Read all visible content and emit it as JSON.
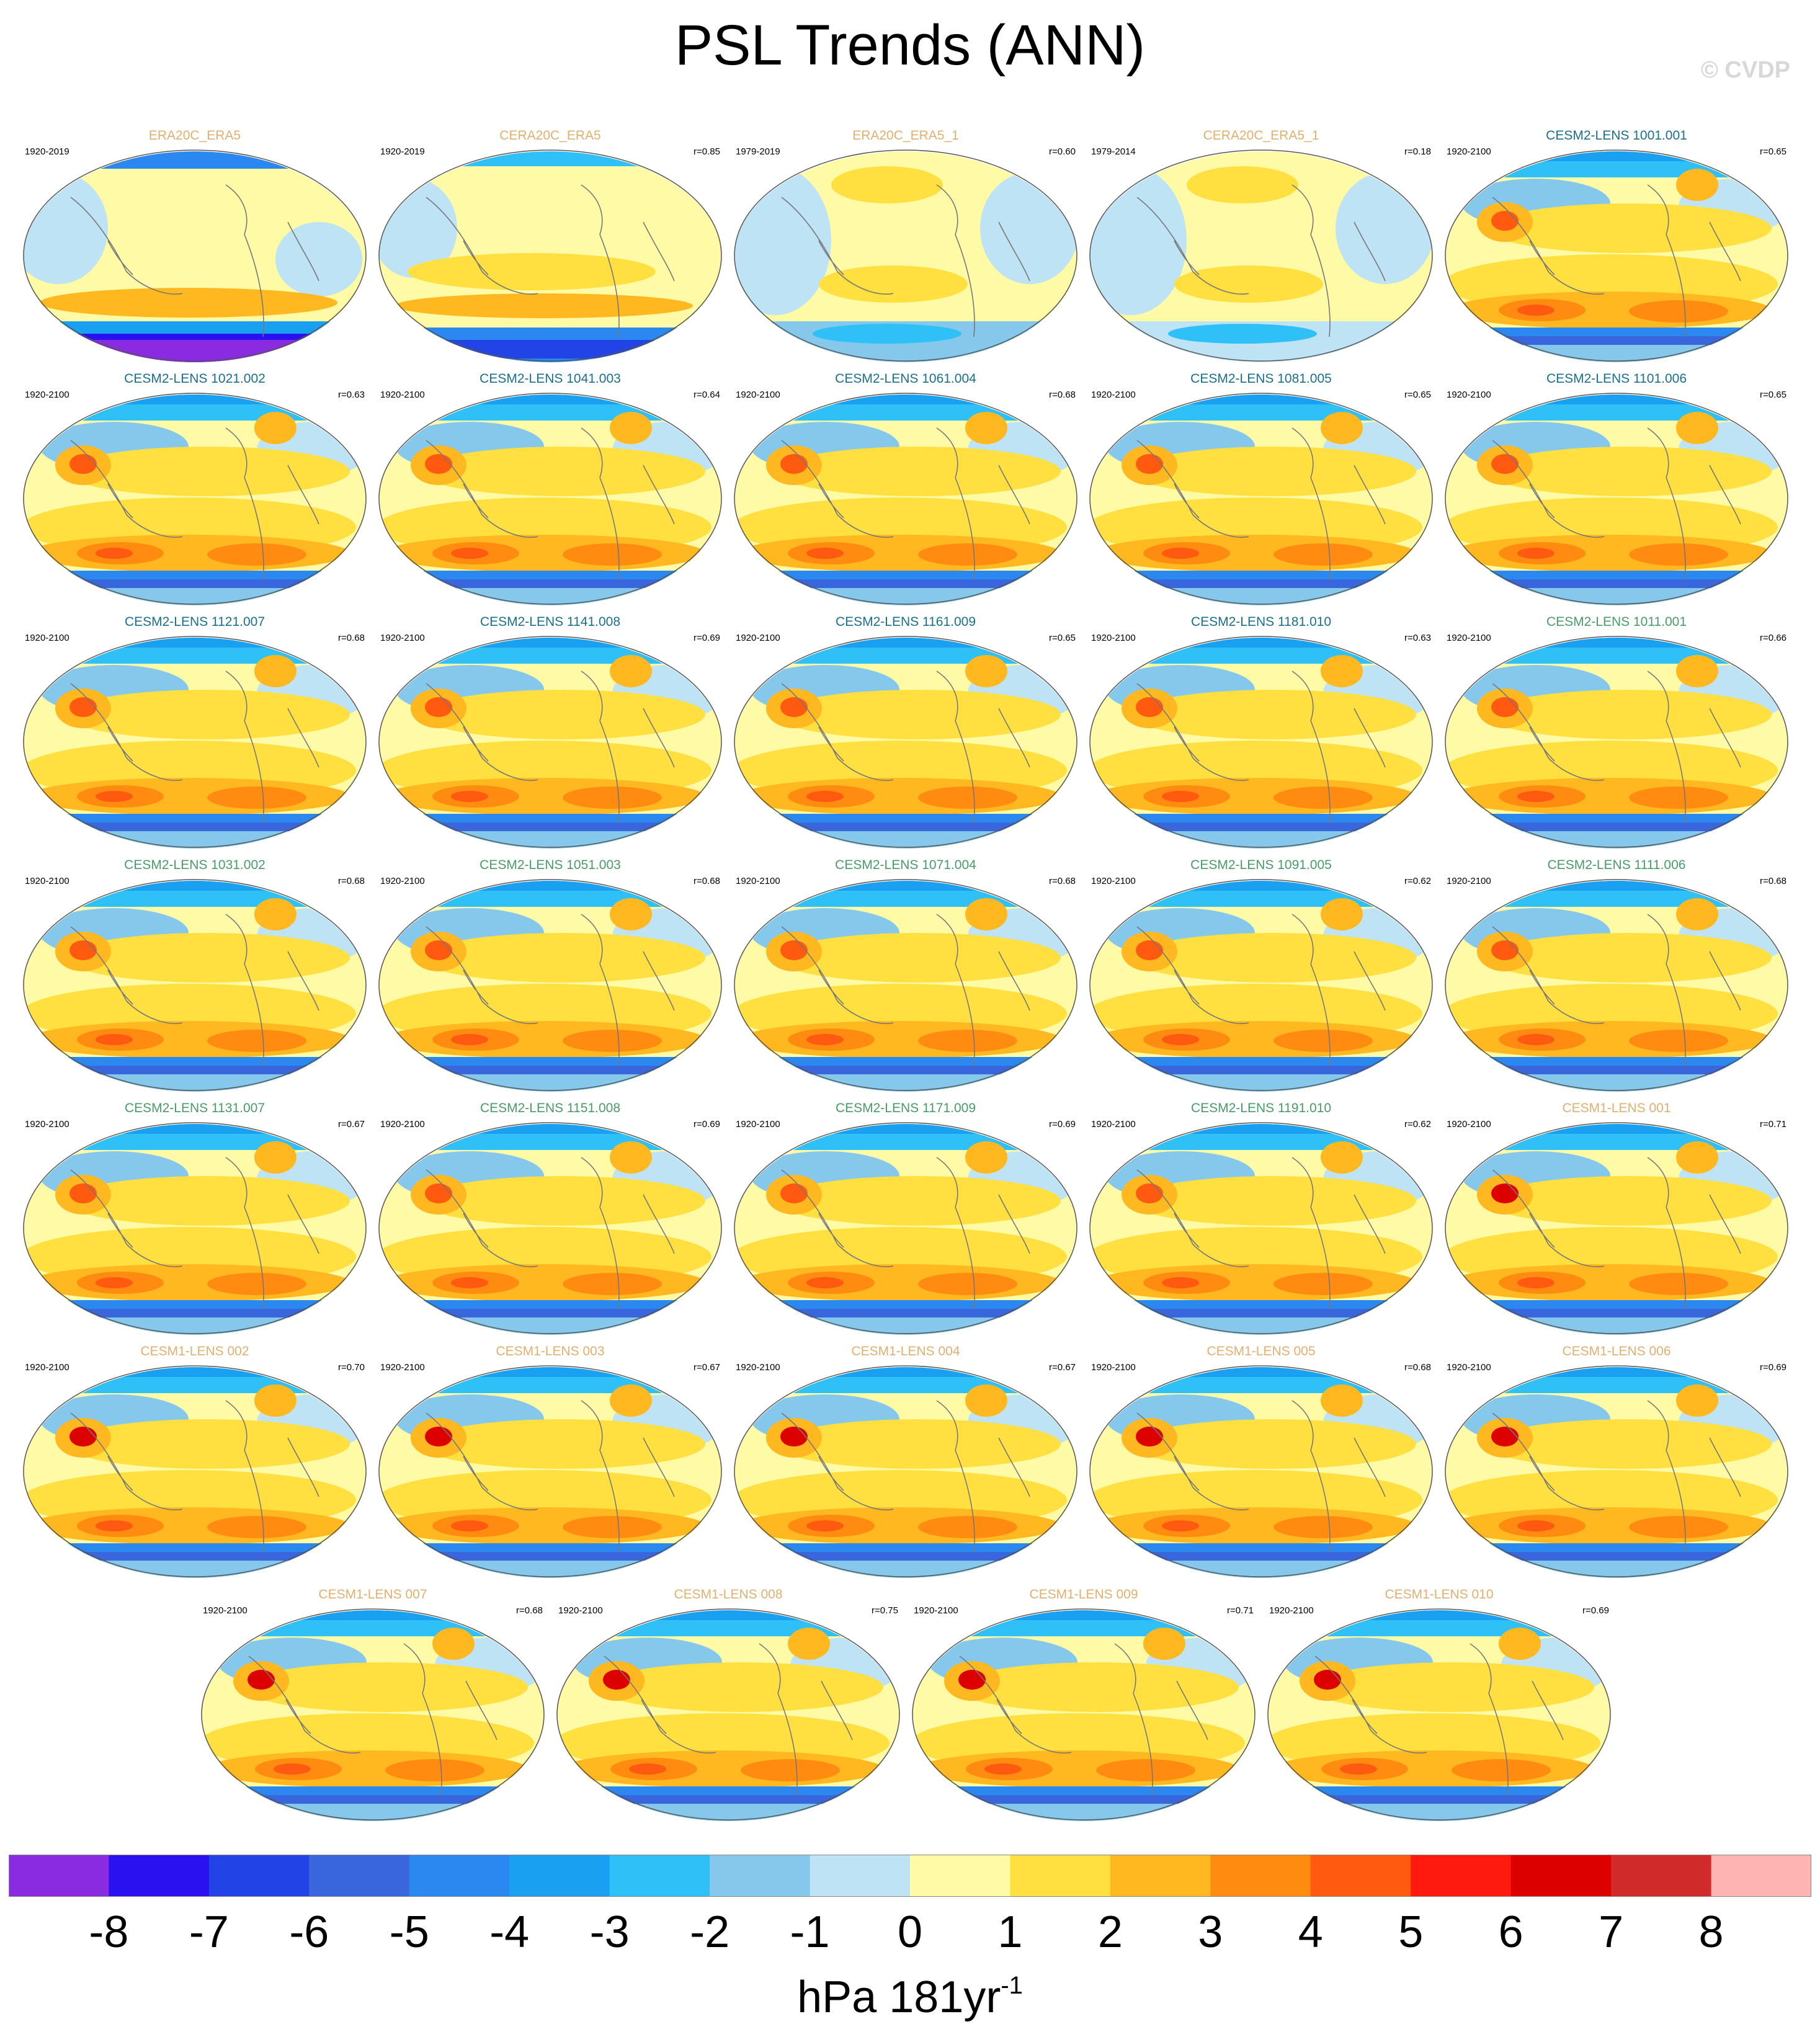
{
  "title": "PSL Trends (ANN)",
  "copyright": "© CVDP",
  "panels": [
    {
      "title": "ERA20C_ERA5",
      "period": "1920-2019",
      "corr": "",
      "kind": "obs1"
    },
    {
      "title": "CERA20C_ERA5",
      "period": "1920-2019",
      "corr": "r=0.85",
      "kind": "obs2"
    },
    {
      "title": "ERA20C_ERA5_1",
      "period": "1979-2019",
      "corr": "r=0.60",
      "kind": "obs3"
    },
    {
      "title": "CERA20C_ERA5_1",
      "period": "1979-2014",
      "corr": "r=0.18",
      "kind": "obs4"
    },
    {
      "title": "CESM2-LENS 1001.001",
      "period": "1920-2100",
      "corr": "r=0.65",
      "kind": "cesm2"
    },
    {
      "title": "CESM2-LENS 1021.002",
      "period": "1920-2100",
      "corr": "r=0.63",
      "kind": "cesm2"
    },
    {
      "title": "CESM2-LENS 1041.003",
      "period": "1920-2100",
      "corr": "r=0.64",
      "kind": "cesm2"
    },
    {
      "title": "CESM2-LENS 1061.004",
      "period": "1920-2100",
      "corr": "r=0.68",
      "kind": "cesm2"
    },
    {
      "title": "CESM2-LENS 1081.005",
      "period": "1920-2100",
      "corr": "r=0.65",
      "kind": "cesm2"
    },
    {
      "title": "CESM2-LENS 1101.006",
      "period": "1920-2100",
      "corr": "r=0.65",
      "kind": "cesm2"
    },
    {
      "title": "CESM2-LENS 1121.007",
      "period": "1920-2100",
      "corr": "r=0.68",
      "kind": "cesm2"
    },
    {
      "title": "CESM2-LENS 1141.008",
      "period": "1920-2100",
      "corr": "r=0.69",
      "kind": "cesm2"
    },
    {
      "title": "CESM2-LENS 1161.009",
      "period": "1920-2100",
      "corr": "r=0.65",
      "kind": "cesm2"
    },
    {
      "title": "CESM2-LENS 1181.010",
      "period": "1920-2100",
      "corr": "r=0.63",
      "kind": "cesm2"
    },
    {
      "title": "CESM2-LENS 1011.001",
      "period": "1920-2100",
      "corr": "r=0.66",
      "kind": "cesm2"
    },
    {
      "title": "CESM2-LENS 1031.002",
      "period": "1920-2100",
      "corr": "r=0.68",
      "kind": "cesm2"
    },
    {
      "title": "CESM2-LENS 1051.003",
      "period": "1920-2100",
      "corr": "r=0.68",
      "kind": "cesm2"
    },
    {
      "title": "CESM2-LENS 1071.004",
      "period": "1920-2100",
      "corr": "r=0.68",
      "kind": "cesm2"
    },
    {
      "title": "CESM2-LENS 1091.005",
      "period": "1920-2100",
      "corr": "r=0.62",
      "kind": "cesm2"
    },
    {
      "title": "CESM2-LENS 1111.006",
      "period": "1920-2100",
      "corr": "r=0.68",
      "kind": "cesm2"
    },
    {
      "title": "CESM2-LENS 1131.007",
      "period": "1920-2100",
      "corr": "r=0.67",
      "kind": "cesm2"
    },
    {
      "title": "CESM2-LENS 1151.008",
      "period": "1920-2100",
      "corr": "r=0.69",
      "kind": "cesm2"
    },
    {
      "title": "CESM2-LENS 1171.009",
      "period": "1920-2100",
      "corr": "r=0.69",
      "kind": "cesm2"
    },
    {
      "title": "CESM2-LENS 1191.010",
      "period": "1920-2100",
      "corr": "r=0.62",
      "kind": "cesm2"
    },
    {
      "title": "CESM1-LENS 001",
      "period": "1920-2100",
      "corr": "r=0.71",
      "kind": "cesm1"
    },
    {
      "title": "CESM1-LENS 002",
      "period": "1920-2100",
      "corr": "r=0.70",
      "kind": "cesm1"
    },
    {
      "title": "CESM1-LENS 003",
      "period": "1920-2100",
      "corr": "r=0.67",
      "kind": "cesm1"
    },
    {
      "title": "CESM1-LENS 004",
      "period": "1920-2100",
      "corr": "r=0.67",
      "kind": "cesm1"
    },
    {
      "title": "CESM1-LENS 005",
      "period": "1920-2100",
      "corr": "r=0.68",
      "kind": "cesm1"
    },
    {
      "title": "CESM1-LENS 006",
      "period": "1920-2100",
      "corr": "r=0.69",
      "kind": "cesm1"
    },
    {
      "title": "CESM1-LENS 007",
      "period": "1920-2100",
      "corr": "r=0.68",
      "kind": "cesm1"
    },
    {
      "title": "CESM1-LENS 008",
      "period": "1920-2100",
      "corr": "r=0.75",
      "kind": "cesm1"
    },
    {
      "title": "CESM1-LENS 009",
      "period": "1920-2100",
      "corr": "r=0.71",
      "kind": "cesm1"
    },
    {
      "title": "CESM1-LENS 010",
      "period": "1920-2100",
      "corr": "r=0.69",
      "kind": "cesm1"
    }
  ],
  "title_colors": {
    "obs": "#e0b070",
    "cesm2a": "#1a6f8a",
    "cesm2b": "#4a9a6a",
    "cesm1": "#e0b070"
  },
  "colorbar": {
    "colors": [
      "#8a2be2",
      "#2a12f0",
      "#2244e6",
      "#3a66dd",
      "#2a88f0",
      "#1aa0f0",
      "#30c0f8",
      "#86c8ec",
      "#bde3f4",
      "#fffaa6",
      "#ffe040",
      "#ffb820",
      "#ff8c10",
      "#ff5a10",
      "#ff1a10",
      "#dd0000",
      "#d02a2a",
      "#ffb4b4"
    ],
    "ticks": [
      "-8",
      "-7",
      "-6",
      "-5",
      "-4",
      "-3",
      "-2",
      "-1",
      "0",
      "1",
      "2",
      "3",
      "4",
      "5",
      "6",
      "7",
      "8"
    ],
    "units": "hPa 181yr",
    "units_exp": "-1"
  }
}
